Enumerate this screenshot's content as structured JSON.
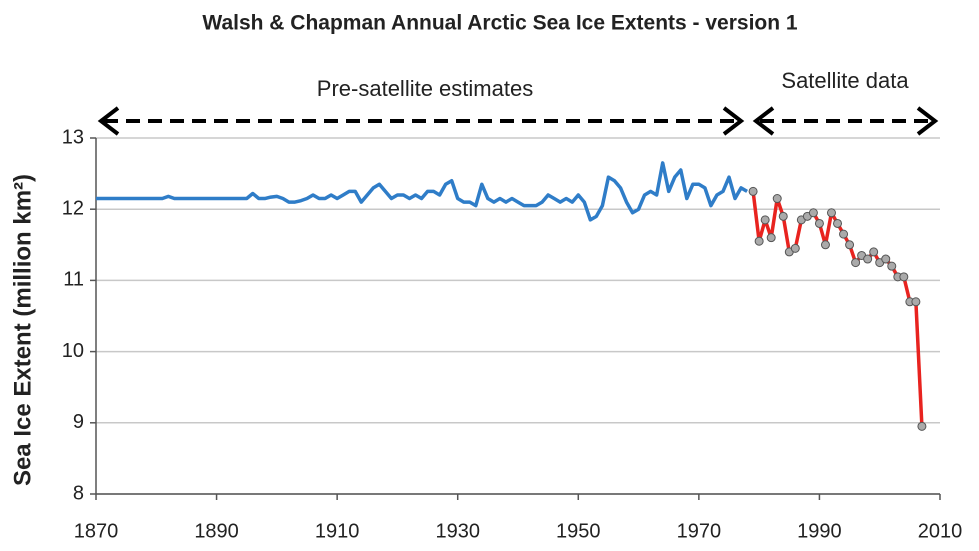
{
  "chart_data": {
    "type": "line",
    "title": "Walsh & Chapman Annual Arctic Sea Ice Extents - version 1",
    "y_label": "Sea Ice Extent (million km²)",
    "annotations": [
      "Pre-satellite estimates",
      "Satellite data"
    ],
    "xlim": [
      1870,
      2010
    ],
    "xticks": [
      1870,
      1890,
      1910,
      1930,
      1950,
      1970,
      1990,
      2010
    ],
    "ylim": [
      8,
      13
    ],
    "yticks": [
      8,
      9,
      10,
      11,
      12,
      13
    ],
    "grid": true,
    "series": [
      {
        "color": "#2f7dc8",
        "markers": false,
        "x": [
          1870,
          1871,
          1872,
          1873,
          1874,
          1875,
          1876,
          1877,
          1878,
          1879,
          1880,
          1881,
          1882,
          1883,
          1884,
          1885,
          1886,
          1887,
          1888,
          1889,
          1890,
          1891,
          1892,
          1893,
          1894,
          1895,
          1896,
          1897,
          1898,
          1899,
          1900,
          1901,
          1902,
          1903,
          1904,
          1905,
          1906,
          1907,
          1908,
          1909,
          1910,
          1911,
          1912,
          1913,
          1914,
          1915,
          1916,
          1917,
          1918,
          1919,
          1920,
          1921,
          1922,
          1923,
          1924,
          1925,
          1926,
          1927,
          1928,
          1929,
          1930,
          1931,
          1932,
          1933,
          1934,
          1935,
          1936,
          1937,
          1938,
          1939,
          1940,
          1941,
          1942,
          1943,
          1944,
          1945,
          1946,
          1947,
          1948,
          1949,
          1950,
          1951,
          1952,
          1953,
          1954,
          1955,
          1956,
          1957,
          1958,
          1959,
          1960,
          1961,
          1962,
          1963,
          1964,
          1965,
          1966,
          1967,
          1968,
          1969,
          1970,
          1971,
          1972,
          1973,
          1974,
          1975,
          1976,
          1977,
          1978
        ],
        "values": [
          12.15,
          12.15,
          12.15,
          12.15,
          12.15,
          12.15,
          12.15,
          12.15,
          12.15,
          12.15,
          12.15,
          12.15,
          12.18,
          12.15,
          12.15,
          12.15,
          12.15,
          12.15,
          12.15,
          12.15,
          12.15,
          12.15,
          12.15,
          12.15,
          12.15,
          12.15,
          12.22,
          12.15,
          12.15,
          12.17,
          12.18,
          12.15,
          12.1,
          12.1,
          12.12,
          12.15,
          12.2,
          12.15,
          12.15,
          12.2,
          12.15,
          12.2,
          12.25,
          12.25,
          12.1,
          12.2,
          12.3,
          12.35,
          12.25,
          12.15,
          12.2,
          12.2,
          12.15,
          12.2,
          12.15,
          12.25,
          12.25,
          12.2,
          12.35,
          12.4,
          12.15,
          12.1,
          12.1,
          12.05,
          12.35,
          12.15,
          12.1,
          12.15,
          12.1,
          12.15,
          12.1,
          12.05,
          12.05,
          12.05,
          12.1,
          12.2,
          12.15,
          12.1,
          12.15,
          12.1,
          12.2,
          12.1,
          11.85,
          11.9,
          12.05,
          12.45,
          12.4,
          12.3,
          12.1,
          11.95,
          12.0,
          12.2,
          12.25,
          12.2,
          12.65,
          12.25,
          12.45,
          12.55,
          12.15,
          12.35,
          12.35,
          12.3,
          12.05,
          12.2,
          12.25,
          12.45,
          12.15,
          12.3,
          12.25
        ]
      },
      {
        "color": "#e8231f",
        "markers": true,
        "x": [
          1979,
          1980,
          1981,
          1982,
          1983,
          1984,
          1985,
          1986,
          1987,
          1988,
          1989,
          1990,
          1991,
          1992,
          1993,
          1994,
          1995,
          1996,
          1997,
          1998,
          1999,
          2000,
          2001,
          2002,
          2003,
          2004,
          2005,
          2006,
          2007
        ],
        "values": [
          12.25,
          11.55,
          11.85,
          11.6,
          12.15,
          11.9,
          11.4,
          11.45,
          11.85,
          11.9,
          11.95,
          11.8,
          11.5,
          11.95,
          11.8,
          11.65,
          11.5,
          11.25,
          11.35,
          11.3,
          11.4,
          11.25,
          11.3,
          11.2,
          11.05,
          11.05,
          10.7,
          10.7,
          8.95
        ]
      }
    ]
  }
}
